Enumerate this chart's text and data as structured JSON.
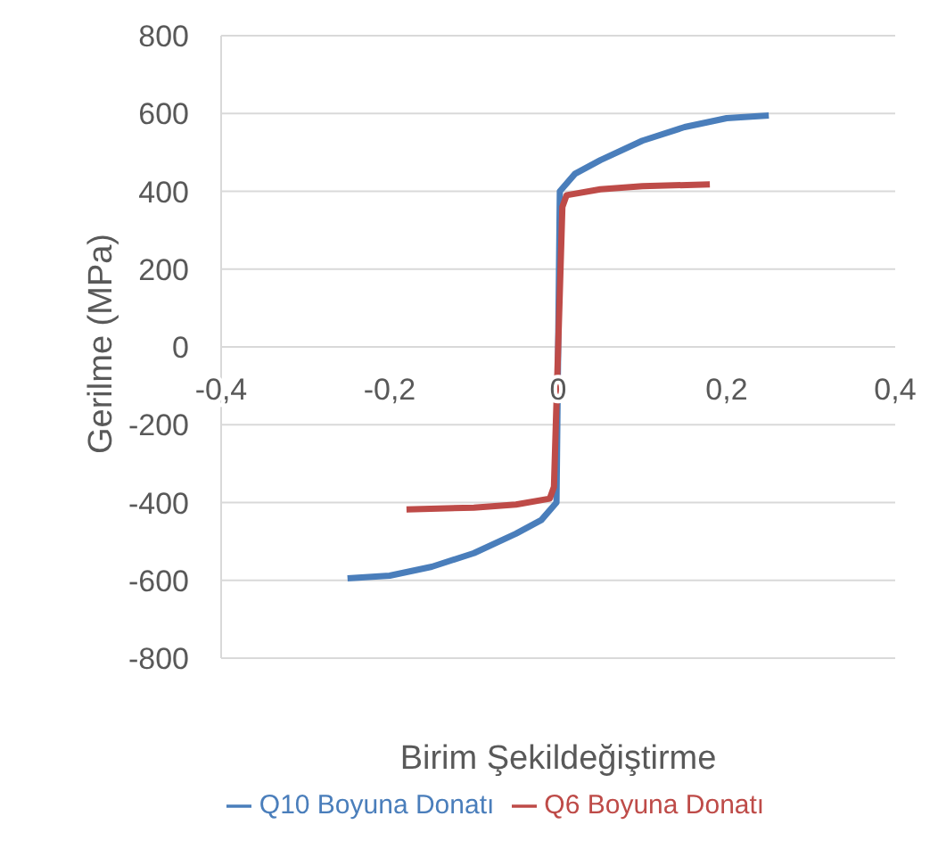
{
  "chart_data": {
    "type": "line",
    "xlabel": "Birim Şekildeğiştirme",
    "ylabel": "Gerilme (MPa)",
    "xlim": [
      -0.4,
      0.4
    ],
    "xticks": [
      {
        "value": -0.4,
        "label": "-0,4"
      },
      {
        "value": -0.2,
        "label": "-0,2"
      },
      {
        "value": 0,
        "label": "0"
      },
      {
        "value": 0.2,
        "label": "0,2"
      },
      {
        "value": 0.4,
        "label": "0,4"
      }
    ],
    "ylim": [
      -800,
      800
    ],
    "yticks": [
      -800,
      -600,
      -400,
      -200,
      0,
      200,
      400,
      600,
      800
    ],
    "grid": "y",
    "legend": "bottom",
    "marker": "none",
    "line_style": "solid",
    "series": [
      {
        "name": "Q10 Boyuna Donatı",
        "color": "#4a7ebb",
        "x": [
          -0.25,
          -0.2,
          -0.15,
          -0.1,
          -0.05,
          -0.02,
          -0.002,
          0.002,
          0.02,
          0.05,
          0.1,
          0.15,
          0.2,
          0.25
        ],
        "values": [
          -595,
          -588,
          -565,
          -530,
          -480,
          -445,
          -400,
          400,
          445,
          480,
          530,
          565,
          588,
          595
        ]
      },
      {
        "name": "Q6 Boyuna Donatı",
        "color": "#be4b48",
        "x": [
          -0.18,
          -0.1,
          -0.05,
          -0.01,
          -0.005,
          0.005,
          0.01,
          0.05,
          0.1,
          0.18
        ],
        "values": [
          -418,
          -413,
          -405,
          -390,
          -360,
          360,
          390,
          405,
          413,
          418
        ]
      }
    ]
  }
}
